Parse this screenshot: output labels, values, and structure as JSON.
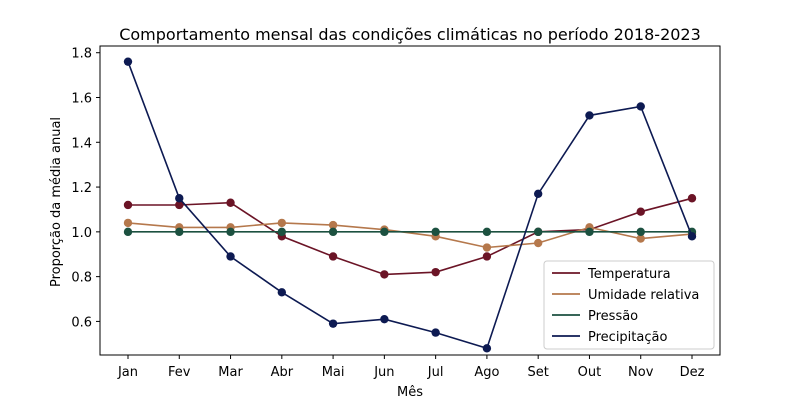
{
  "chart_data": {
    "type": "line",
    "title": "Comportamento mensal das condições climáticas no período 2018-2023",
    "xlabel": "Mês",
    "ylabel": "Proporção da média anual",
    "categories": [
      "Jan",
      "Fev",
      "Mar",
      "Abr",
      "Mai",
      "Jun",
      "Jul",
      "Ago",
      "Set",
      "Out",
      "Nov",
      "Dez"
    ],
    "ylim": [
      0.45,
      1.83
    ],
    "yticks": [
      "0.6",
      "0.8",
      "1.0",
      "1.2",
      "1.4",
      "1.6",
      "1.8"
    ],
    "grid": false,
    "legend_position": "lower-right",
    "series": [
      {
        "name": "Temperatura",
        "color": "#6b1426",
        "values": [
          1.12,
          1.12,
          1.13,
          0.98,
          0.89,
          0.81,
          0.82,
          0.89,
          1.0,
          1.01,
          1.09,
          1.15
        ]
      },
      {
        "name": "Umidade relativa",
        "color": "#b5784c",
        "values": [
          1.04,
          1.02,
          1.02,
          1.04,
          1.03,
          1.01,
          0.98,
          0.93,
          0.95,
          1.02,
          0.97,
          0.99
        ]
      },
      {
        "name": "Pressão",
        "color": "#1c5140",
        "values": [
          1.0,
          1.0,
          1.0,
          1.0,
          1.0,
          1.0,
          1.0,
          1.0,
          1.0,
          1.0,
          1.0,
          1.0
        ]
      },
      {
        "name": "Precipitação",
        "color": "#0d1a52",
        "values": [
          1.76,
          1.15,
          0.89,
          0.73,
          0.59,
          0.61,
          0.55,
          0.48,
          1.17,
          1.52,
          1.56,
          0.98
        ]
      }
    ]
  }
}
